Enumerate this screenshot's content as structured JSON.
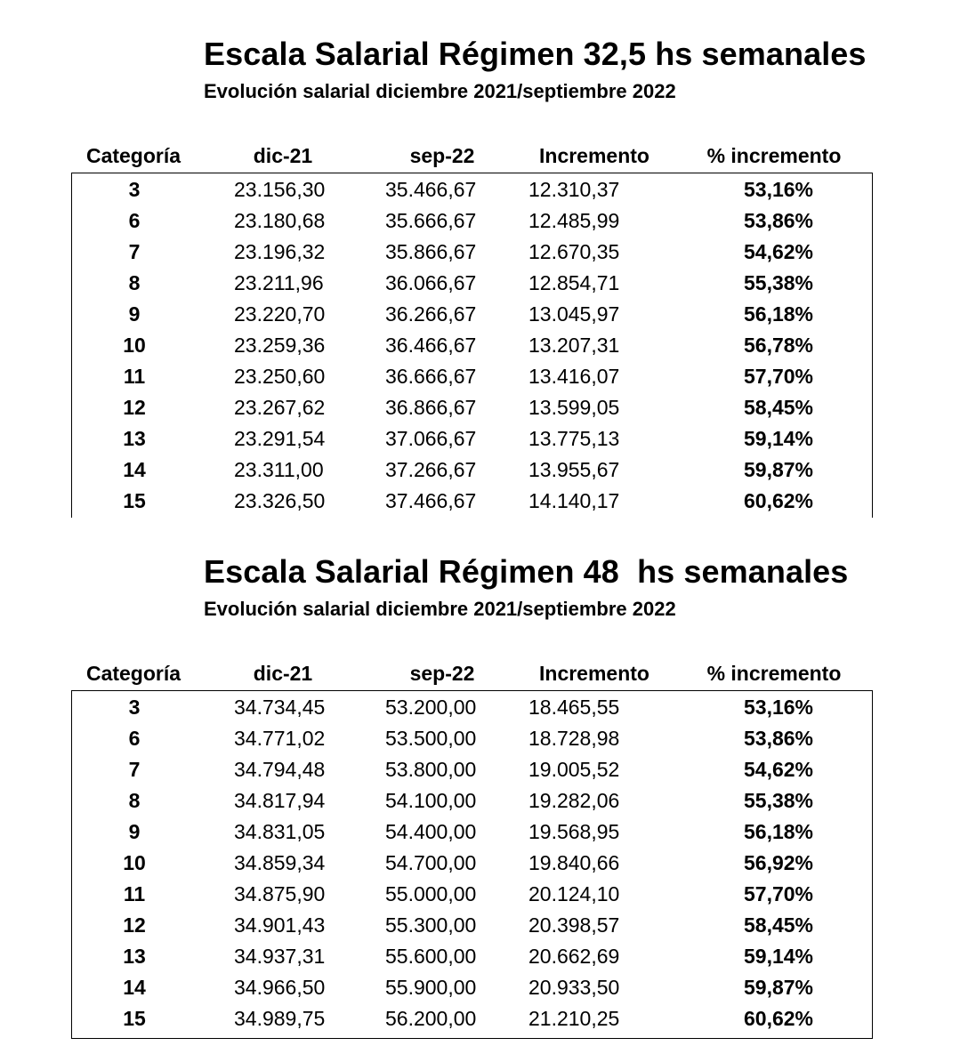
{
  "tables": [
    {
      "title": "Escala Salarial Régimen 32,5 hs semanales",
      "subtitle": "Evolución salarial diciembre 2021/septiembre 2022",
      "headers": {
        "categoria": "Categoría",
        "dic21": "dic-21",
        "sep22": "sep-22",
        "incremento": "Incremento",
        "pct": "% incremento"
      },
      "rows": [
        {
          "cat": "3",
          "dic": "23.156,30",
          "sep": "35.466,67",
          "inc": "12.310,37",
          "pct": "53,16%"
        },
        {
          "cat": "6",
          "dic": "23.180,68",
          "sep": "35.666,67",
          "inc": "12.485,99",
          "pct": "53,86%"
        },
        {
          "cat": "7",
          "dic": "23.196,32",
          "sep": "35.866,67",
          "inc": "12.670,35",
          "pct": "54,62%"
        },
        {
          "cat": "8",
          "dic": "23.211,96",
          "sep": "36.066,67",
          "inc": "12.854,71",
          "pct": "55,38%"
        },
        {
          "cat": "9",
          "dic": "23.220,70",
          "sep": "36.266,67",
          "inc": "13.045,97",
          "pct": "56,18%"
        },
        {
          "cat": "10",
          "dic": "23.259,36",
          "sep": "36.466,67",
          "inc": "13.207,31",
          "pct": "56,78%"
        },
        {
          "cat": "11",
          "dic": "23.250,60",
          "sep": "36.666,67",
          "inc": "13.416,07",
          "pct": "57,70%"
        },
        {
          "cat": "12",
          "dic": "23.267,62",
          "sep": "36.866,67",
          "inc": "13.599,05",
          "pct": "58,45%"
        },
        {
          "cat": "13",
          "dic": "23.291,54",
          "sep": "37.066,67",
          "inc": "13.775,13",
          "pct": "59,14%"
        },
        {
          "cat": "14",
          "dic": "23.311,00",
          "sep": "37.266,67",
          "inc": "13.955,67",
          "pct": "59,87%"
        },
        {
          "cat": "15",
          "dic": "23.326,50",
          "sep": "37.466,67",
          "inc": "14.140,17",
          "pct": "60,62%"
        }
      ]
    },
    {
      "title": "Escala Salarial Régimen 48  hs semanales",
      "subtitle": "Evolución salarial diciembre 2021/septiembre 2022",
      "headers": {
        "categoria": "Categoría",
        "dic21": "dic-21",
        "sep22": "sep-22",
        "incremento": "Incremento",
        "pct": "% incremento"
      },
      "rows": [
        {
          "cat": "3",
          "dic": "34.734,45",
          "sep": "53.200,00",
          "inc": "18.465,55",
          "pct": "53,16%"
        },
        {
          "cat": "6",
          "dic": "34.771,02",
          "sep": "53.500,00",
          "inc": "18.728,98",
          "pct": "53,86%"
        },
        {
          "cat": "7",
          "dic": "34.794,48",
          "sep": "53.800,00",
          "inc": "19.005,52",
          "pct": "54,62%"
        },
        {
          "cat": "8",
          "dic": "34.817,94",
          "sep": "54.100,00",
          "inc": "19.282,06",
          "pct": "55,38%"
        },
        {
          "cat": "9",
          "dic": "34.831,05",
          "sep": "54.400,00",
          "inc": "19.568,95",
          "pct": "56,18%"
        },
        {
          "cat": "10",
          "dic": "34.859,34",
          "sep": "54.700,00",
          "inc": "19.840,66",
          "pct": "56,92%"
        },
        {
          "cat": "11",
          "dic": "34.875,90",
          "sep": "55.000,00",
          "inc": "20.124,10",
          "pct": "57,70%"
        },
        {
          "cat": "12",
          "dic": "34.901,43",
          "sep": "55.300,00",
          "inc": "20.398,57",
          "pct": "58,45%"
        },
        {
          "cat": "13",
          "dic": "34.937,31",
          "sep": "55.600,00",
          "inc": "20.662,69",
          "pct": "59,14%"
        },
        {
          "cat": "14",
          "dic": "34.966,50",
          "sep": "55.900,00",
          "inc": "20.933,50",
          "pct": "59,87%"
        },
        {
          "cat": "15",
          "dic": "34.989,75",
          "sep": "56.200,00",
          "inc": "21.210,25",
          "pct": "60,62%"
        }
      ]
    }
  ]
}
